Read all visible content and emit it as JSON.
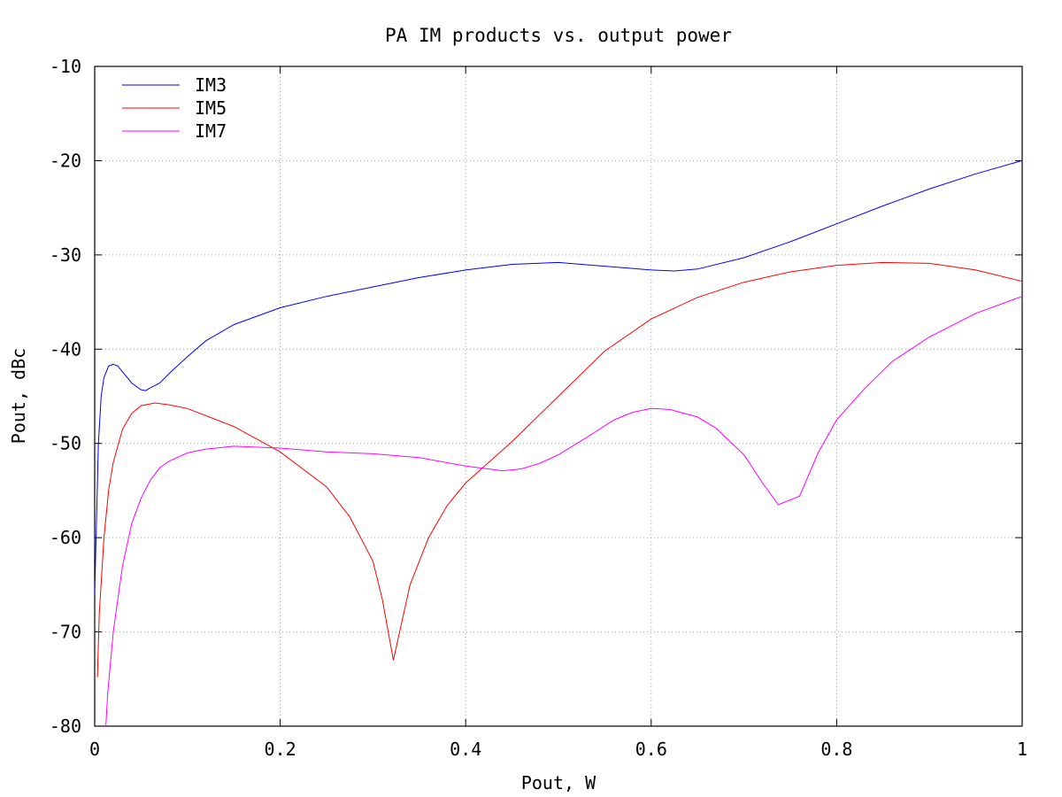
{
  "chart_data": {
    "type": "line",
    "title": "PA IM products vs. output power",
    "xlabel": "Pout, W",
    "ylabel": "Pout, dBc",
    "xlim": [
      0,
      1
    ],
    "ylim": [
      -80,
      -10
    ],
    "xticks": [
      0,
      0.2,
      0.4,
      0.6,
      0.8,
      1
    ],
    "xtick_labels": [
      "0",
      "0.2",
      "0.4",
      "0.6",
      "0.8",
      "1"
    ],
    "yticks": [
      -80,
      -70,
      -60,
      -50,
      -40,
      -30,
      -20,
      -10
    ],
    "ytick_labels": [
      "-80",
      "-70",
      "-60",
      "-50",
      "-40",
      "-30",
      "-20",
      "-10"
    ],
    "grid": true,
    "legend_position": "top-left",
    "series": [
      {
        "name": "IM3",
        "color": "#0000ff",
        "points": [
          [
            0.0,
            -66
          ],
          [
            0.002,
            -58
          ],
          [
            0.004,
            -50
          ],
          [
            0.007,
            -45
          ],
          [
            0.01,
            -43
          ],
          [
            0.015,
            -41.8
          ],
          [
            0.02,
            -41.6
          ],
          [
            0.025,
            -41.8
          ],
          [
            0.03,
            -42.4
          ],
          [
            0.04,
            -43.6
          ],
          [
            0.05,
            -44.3
          ],
          [
            0.055,
            -44.4
          ],
          [
            0.06,
            -44.1
          ],
          [
            0.07,
            -43.6
          ],
          [
            0.08,
            -42.6
          ],
          [
            0.1,
            -40.8
          ],
          [
            0.12,
            -39.1
          ],
          [
            0.15,
            -37.4
          ],
          [
            0.2,
            -35.6
          ],
          [
            0.25,
            -34.4
          ],
          [
            0.3,
            -33.4
          ],
          [
            0.35,
            -32.4
          ],
          [
            0.4,
            -31.6
          ],
          [
            0.45,
            -31.0
          ],
          [
            0.5,
            -30.8
          ],
          [
            0.55,
            -31.2
          ],
          [
            0.6,
            -31.6
          ],
          [
            0.625,
            -31.7
          ],
          [
            0.65,
            -31.5
          ],
          [
            0.7,
            -30.3
          ],
          [
            0.75,
            -28.6
          ],
          [
            0.8,
            -26.7
          ],
          [
            0.85,
            -24.8
          ],
          [
            0.9,
            -23.0
          ],
          [
            0.95,
            -21.4
          ],
          [
            1.0,
            -20.0
          ]
        ]
      },
      {
        "name": "IM5",
        "color": "#ff0000",
        "points": [
          [
            0.003,
            -74.8
          ],
          [
            0.005,
            -68
          ],
          [
            0.01,
            -60
          ],
          [
            0.015,
            -55
          ],
          [
            0.02,
            -52
          ],
          [
            0.03,
            -48.5
          ],
          [
            0.04,
            -46.8
          ],
          [
            0.05,
            -46.0
          ],
          [
            0.065,
            -45.7
          ],
          [
            0.08,
            -45.9
          ],
          [
            0.1,
            -46.3
          ],
          [
            0.15,
            -48.2
          ],
          [
            0.2,
            -50.9
          ],
          [
            0.25,
            -54.6
          ],
          [
            0.275,
            -57.8
          ],
          [
            0.3,
            -62.5
          ],
          [
            0.31,
            -66.5
          ],
          [
            0.322,
            -73.0
          ],
          [
            0.34,
            -65
          ],
          [
            0.36,
            -60
          ],
          [
            0.38,
            -56.6
          ],
          [
            0.4,
            -54.2
          ],
          [
            0.45,
            -49.8
          ],
          [
            0.5,
            -45.0
          ],
          [
            0.55,
            -40.2
          ],
          [
            0.6,
            -36.8
          ],
          [
            0.65,
            -34.5
          ],
          [
            0.7,
            -32.9
          ],
          [
            0.75,
            -31.8
          ],
          [
            0.8,
            -31.1
          ],
          [
            0.85,
            -30.8
          ],
          [
            0.9,
            -30.9
          ],
          [
            0.95,
            -31.6
          ],
          [
            1.0,
            -32.8
          ]
        ]
      },
      {
        "name": "IM7",
        "color": "#ff00ff",
        "points": [
          [
            0.012,
            -80
          ],
          [
            0.014,
            -76.5
          ],
          [
            0.02,
            -70
          ],
          [
            0.03,
            -63
          ],
          [
            0.04,
            -58.5
          ],
          [
            0.05,
            -55.8
          ],
          [
            0.06,
            -53.9
          ],
          [
            0.07,
            -52.6
          ],
          [
            0.08,
            -51.9
          ],
          [
            0.1,
            -51.0
          ],
          [
            0.12,
            -50.6
          ],
          [
            0.15,
            -50.3
          ],
          [
            0.2,
            -50.5
          ],
          [
            0.25,
            -50.9
          ],
          [
            0.3,
            -51.1
          ],
          [
            0.35,
            -51.5
          ],
          [
            0.4,
            -52.4
          ],
          [
            0.44,
            -52.9
          ],
          [
            0.46,
            -52.7
          ],
          [
            0.48,
            -52.1
          ],
          [
            0.5,
            -51.2
          ],
          [
            0.53,
            -49.4
          ],
          [
            0.56,
            -47.5
          ],
          [
            0.58,
            -46.7
          ],
          [
            0.6,
            -46.3
          ],
          [
            0.62,
            -46.4
          ],
          [
            0.65,
            -47.2
          ],
          [
            0.67,
            -48.4
          ],
          [
            0.7,
            -51.2
          ],
          [
            0.72,
            -54.2
          ],
          [
            0.737,
            -56.5
          ],
          [
            0.76,
            -55.6
          ],
          [
            0.78,
            -51.0
          ],
          [
            0.8,
            -47.5
          ],
          [
            0.83,
            -44.2
          ],
          [
            0.86,
            -41.3
          ],
          [
            0.9,
            -38.7
          ],
          [
            0.95,
            -36.2
          ],
          [
            1.0,
            -34.4
          ]
        ]
      }
    ]
  }
}
